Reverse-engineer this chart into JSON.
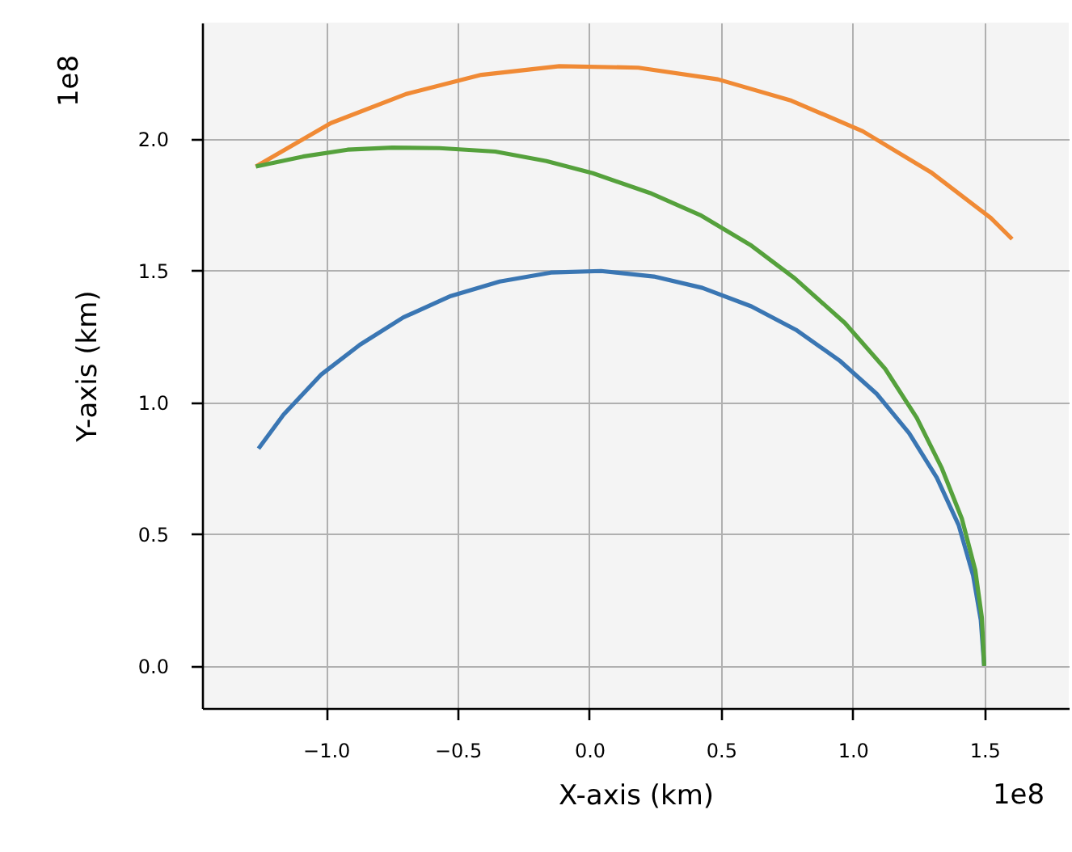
{
  "chart_data": {
    "type": "line",
    "xlabel": "X-axis (km)",
    "ylabel": "Y-axis (km)",
    "annotations": [
      "1e8",
      "1e8"
    ],
    "xlim": [
      -1.47,
      1.82
    ],
    "ylim": [
      -0.16,
      2.44
    ],
    "xticks": [
      {
        "value": -1,
        "label": "−1.0"
      },
      {
        "value": -0.5,
        "label": "−0.5"
      },
      {
        "value": 0,
        "label": "0.0"
      },
      {
        "value": 0.5,
        "label": "0.5"
      },
      {
        "value": 1,
        "label": "1.0"
      },
      {
        "value": 1.5,
        "label": "1.5"
      }
    ],
    "yticks": [
      {
        "value": 0,
        "label": "0.0"
      },
      {
        "value": 0.5,
        "label": "0.5"
      },
      {
        "value": 1,
        "label": "1.0"
      },
      {
        "value": 1.5,
        "label": "1.5"
      },
      {
        "value": 2,
        "label": "2.0"
      }
    ],
    "grid": true,
    "marker": "none",
    "line_style": "solid",
    "series": [
      {
        "color": "#3a76b3",
        "x": [
          -1.256,
          -1.161,
          -1.017,
          -0.871,
          -0.706,
          -0.526,
          -0.34,
          -0.146,
          0.044,
          0.245,
          0.429,
          0.615,
          0.784,
          0.949,
          1.091,
          1.214,
          1.319,
          1.402,
          1.457,
          1.486,
          1.499
        ],
        "values": [
          0.824,
          0.953,
          1.106,
          1.218,
          1.322,
          1.403,
          1.458,
          1.492,
          1.498,
          1.477,
          1.434,
          1.364,
          1.275,
          1.159,
          1.032,
          0.883,
          0.714,
          0.534,
          0.343,
          0.174,
          0
        ]
      },
      {
        "color": "#f08a35",
        "x": [
          -1.266,
          -0.981,
          -0.696,
          -0.41,
          -0.114,
          0.186,
          0.488,
          0.767,
          1.038,
          1.296,
          1.524,
          1.605
        ],
        "values": [
          1.894,
          2.059,
          2.169,
          2.242,
          2.275,
          2.269,
          2.225,
          2.144,
          2.028,
          1.873,
          1.699,
          1.619
        ]
      },
      {
        "color": "#55a13c",
        "x": [
          -1.266,
          -1.087,
          -0.918,
          -0.748,
          -0.569,
          -0.357,
          -0.163,
          0.013,
          0.23,
          0.421,
          0.611,
          0.78,
          0.97,
          1.123,
          1.243,
          1.338,
          1.414,
          1.465,
          1.49,
          1.499
        ],
        "values": [
          1.894,
          1.932,
          1.958,
          1.966,
          1.964,
          1.951,
          1.915,
          1.869,
          1.794,
          1.71,
          1.597,
          1.47,
          1.301,
          1.127,
          0.941,
          0.75,
          0.559,
          0.364,
          0.184,
          0
        ]
      }
    ]
  }
}
